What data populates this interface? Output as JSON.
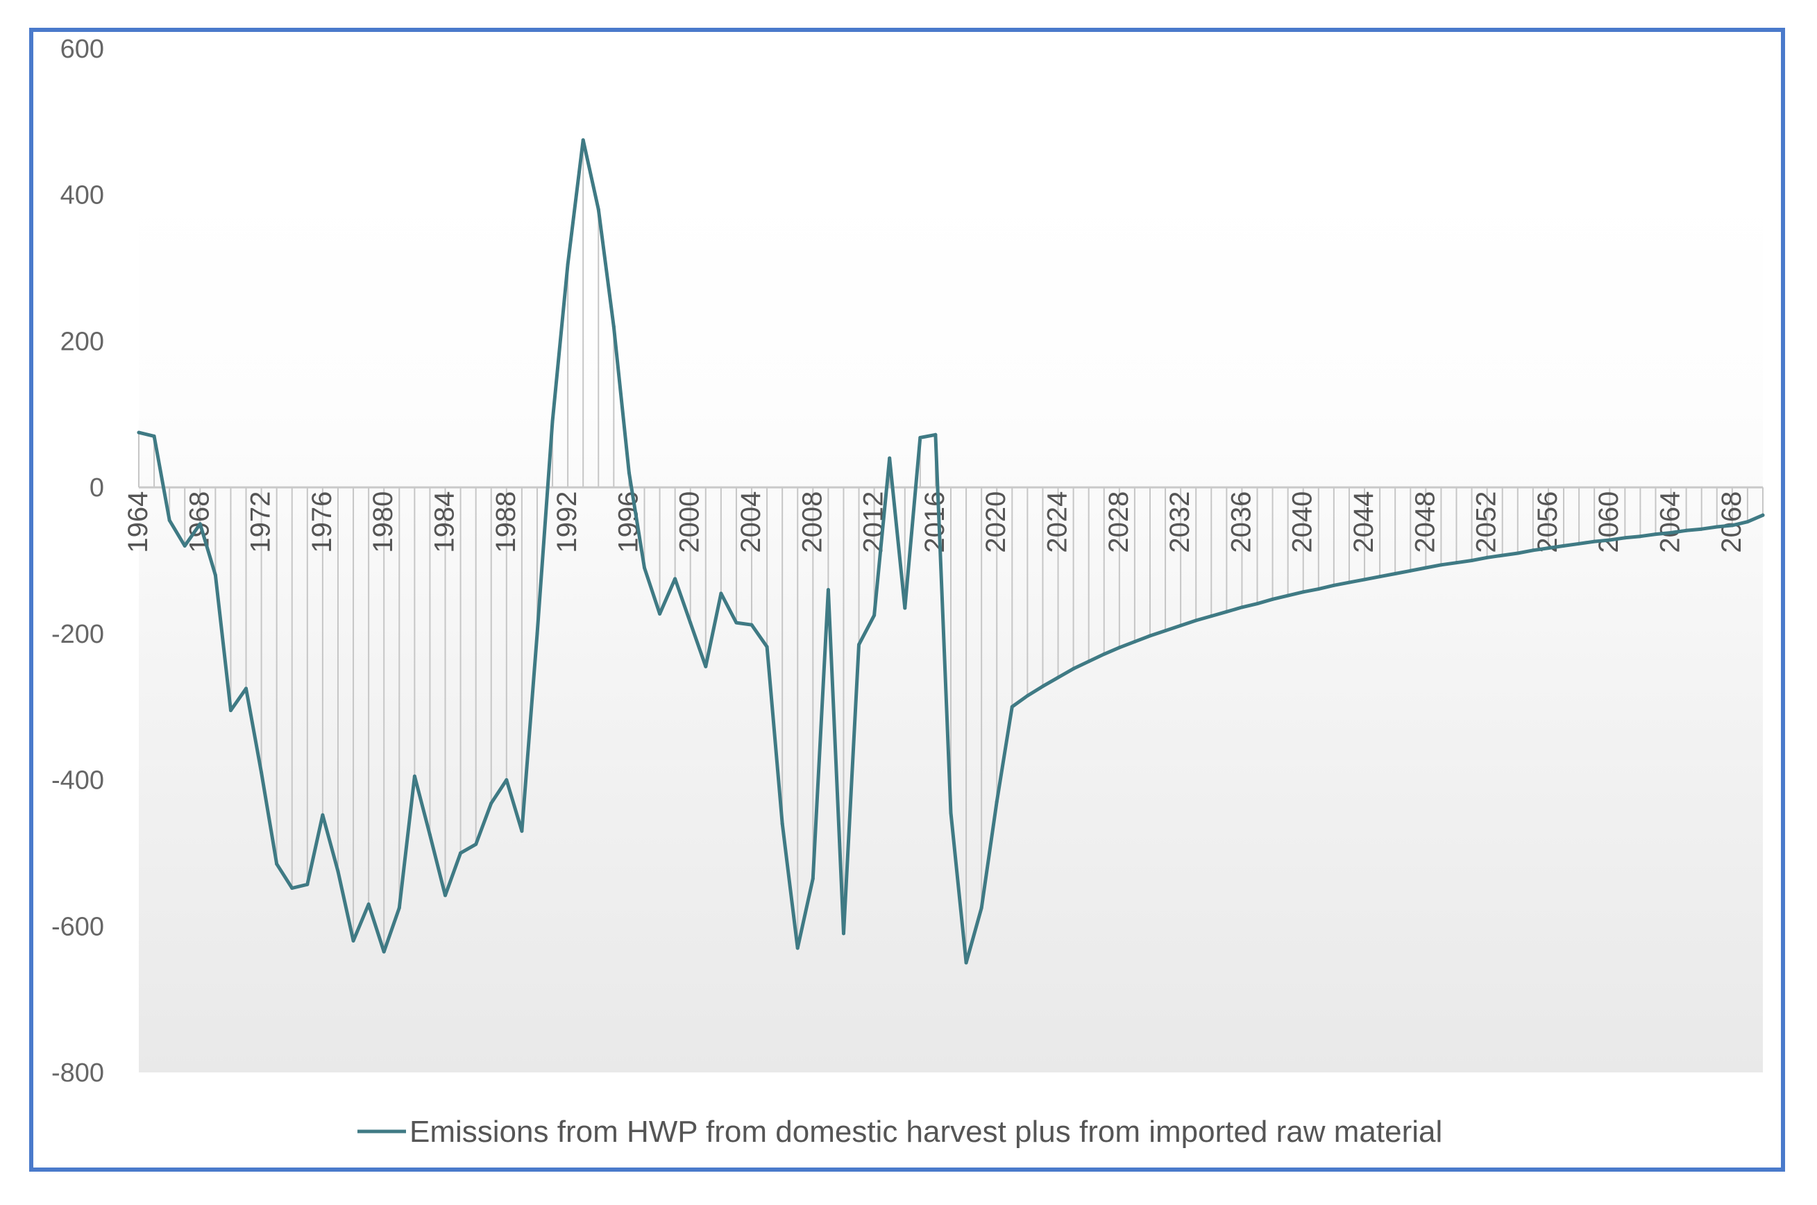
{
  "chart_data": {
    "type": "line",
    "title": "",
    "xlabel": "",
    "ylabel": "",
    "ylim": [
      -800,
      600
    ],
    "xlim": [
      1964,
      2070
    ],
    "y_ticks": [
      600,
      400,
      200,
      0,
      -200,
      -400,
      -600,
      -800
    ],
    "y_tick_labels": [
      "600",
      "400",
      "200",
      "0",
      "-200",
      "-400",
      "-600",
      "-800"
    ],
    "x_ticks": [
      1964,
      1968,
      1972,
      1976,
      1980,
      1984,
      1988,
      1992,
      1996,
      2000,
      2004,
      2008,
      2012,
      2016,
      2020,
      2024,
      2028,
      2032,
      2036,
      2040,
      2044,
      2048,
      2052,
      2056,
      2060,
      2064,
      2068
    ],
    "x_tick_labels": [
      "1964",
      "1968",
      "1972",
      "1976",
      "1980",
      "1984",
      "1988",
      "1992",
      "1996",
      "2000",
      "2004",
      "2008",
      "2012",
      "2016",
      "2020",
      "2024",
      "2028",
      "2032",
      "2036",
      "2040",
      "2044",
      "2048",
      "2052",
      "2056",
      "2060",
      "2064",
      "2068"
    ],
    "legend_position": "bottom",
    "series": [
      {
        "name": "Emissions from HWP from domestic harvest plus from imported raw material",
        "color": "#3f7a84",
        "x": [
          1964,
          1965,
          1966,
          1967,
          1968,
          1969,
          1970,
          1971,
          1972,
          1973,
          1974,
          1975,
          1976,
          1977,
          1978,
          1979,
          1980,
          1981,
          1982,
          1983,
          1984,
          1985,
          1986,
          1987,
          1988,
          1989,
          1990,
          1991,
          1992,
          1993,
          1994,
          1995,
          1996,
          1997,
          1998,
          1999,
          2000,
          2001,
          2002,
          2003,
          2004,
          2005,
          2006,
          2007,
          2008,
          2009,
          2010,
          2011,
          2012,
          2013,
          2014,
          2015,
          2016,
          2017,
          2018,
          2019,
          2020,
          2021,
          2022,
          2023,
          2024,
          2025,
          2026,
          2027,
          2028,
          2029,
          2030,
          2031,
          2032,
          2033,
          2034,
          2035,
          2036,
          2037,
          2038,
          2039,
          2040,
          2041,
          2042,
          2043,
          2044,
          2045,
          2046,
          2047,
          2048,
          2049,
          2050,
          2051,
          2052,
          2053,
          2054,
          2055,
          2056,
          2057,
          2058,
          2059,
          2060,
          2061,
          2062,
          2063,
          2064,
          2065,
          2066,
          2067,
          2068,
          2069,
          2070
        ],
        "values": [
          75,
          70,
          -45,
          -80,
          -50,
          -120,
          -305,
          -275,
          -390,
          -515,
          -548,
          -543,
          -448,
          -525,
          -620,
          -570,
          -635,
          -575,
          -395,
          -475,
          -558,
          -500,
          -488,
          -432,
          -400,
          -470,
          -200,
          90,
          305,
          475,
          380,
          220,
          20,
          -110,
          -173,
          -125,
          -185,
          -245,
          -145,
          -185,
          -188,
          -218,
          -460,
          -630,
          -535,
          -140,
          -610,
          -215,
          -175,
          40,
          -165,
          68,
          72,
          -445,
          -650,
          -575,
          -430,
          -300,
          -285,
          -272,
          -260,
          -248,
          -238,
          -228,
          -219,
          -211,
          -203,
          -196,
          -189,
          -182,
          -176,
          -170,
          -164,
          -159,
          -153,
          -148,
          -143,
          -139,
          -134,
          -130,
          -126,
          -122,
          -118,
          -114,
          -110,
          -106,
          -103,
          -100,
          -96,
          -93,
          -90,
          -86,
          -83,
          -80,
          -77,
          -74,
          -72,
          -69,
          -67,
          -64,
          -62,
          -59,
          -57,
          -54,
          -52,
          -47,
          -38
        ]
      }
    ]
  }
}
